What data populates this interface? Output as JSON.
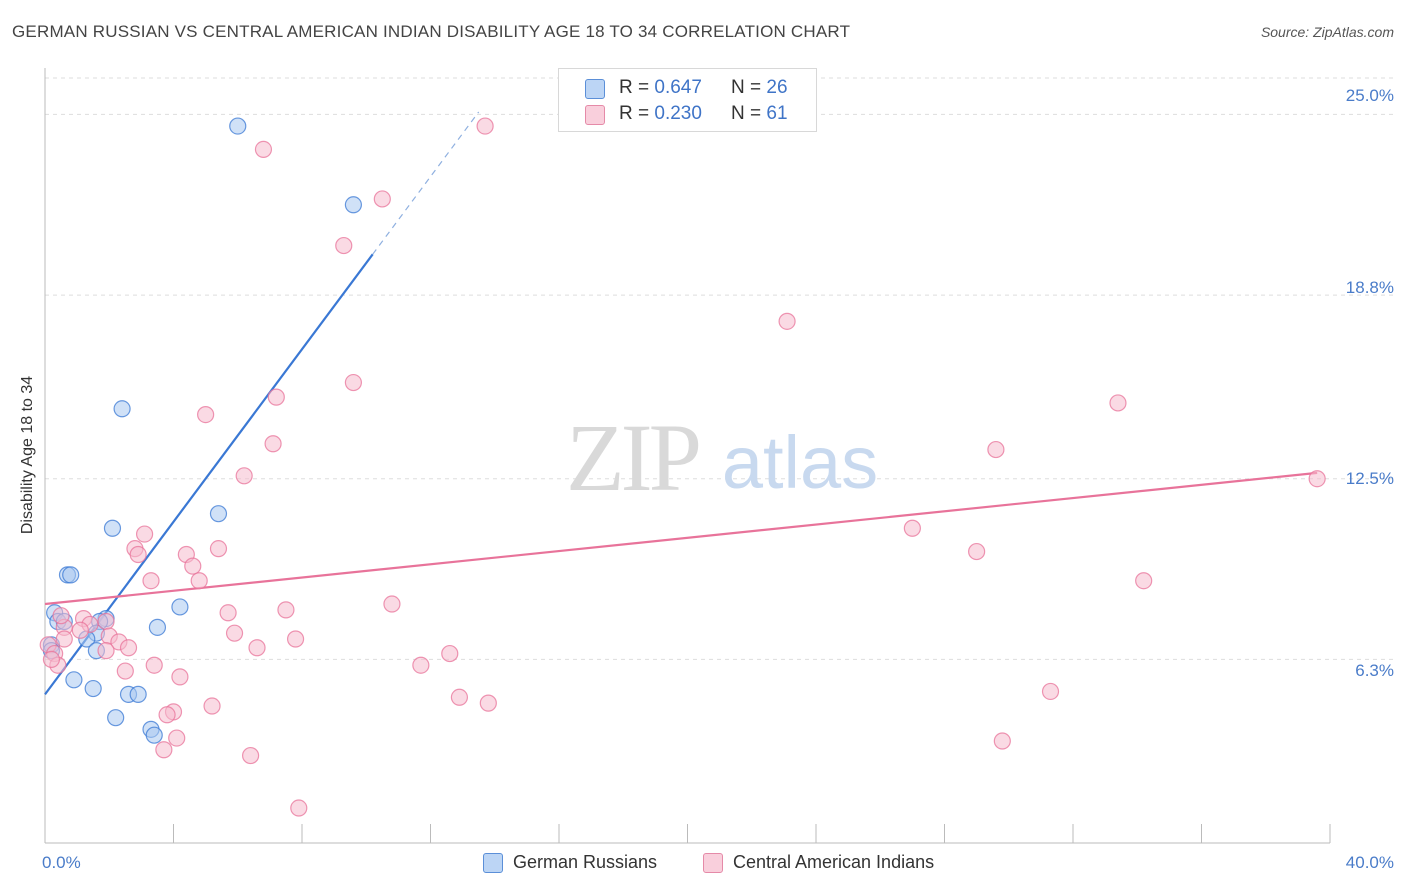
{
  "title": "GERMAN RUSSIAN VS CENTRAL AMERICAN INDIAN DISABILITY AGE 18 TO 34 CORRELATION CHART",
  "source": "Source: ZipAtlas.com",
  "watermark": {
    "zip": "ZIP",
    "atlas": "atlas"
  },
  "colors": {
    "blue": "#3a78d4",
    "blue_fill": "#a9c8f0",
    "pink": "#e8739a",
    "pink_fill": "#f6bccd",
    "tick_text": "#4a7cc9",
    "grid": "#dddddd"
  },
  "legend_top": {
    "rows": [
      {
        "r_label": "R =",
        "r_value": "0.647",
        "n_label": "N =",
        "n_value": "26",
        "color": "blue"
      },
      {
        "r_label": "R =",
        "r_value": "0.230",
        "n_label": "N =",
        "n_value": "61",
        "color": "pink"
      }
    ]
  },
  "legend_bottom": [
    {
      "label": "German Russians",
      "color": "blue"
    },
    {
      "label": "Central American Indians",
      "color": "pink"
    }
  ],
  "chart_data": {
    "type": "scatter",
    "title": "GERMAN RUSSIAN VS CENTRAL AMERICAN INDIAN DISABILITY AGE 18 TO 34 CORRELATION CHART",
    "xlabel": "",
    "ylabel": "Disability Age 18 to 34",
    "xlim": [
      0,
      40
    ],
    "ylim": [
      0,
      26.25
    ],
    "x_tick_labels": [
      {
        "value": 0,
        "label": "0.0%"
      },
      {
        "value": 40,
        "label": "40.0%"
      }
    ],
    "y_tick_labels": [
      {
        "value": 6.3,
        "label": "6.3%"
      },
      {
        "value": 12.5,
        "label": "12.5%"
      },
      {
        "value": 18.8,
        "label": "18.8%"
      },
      {
        "value": 25.0,
        "label": "25.0%"
      }
    ],
    "x_minor_ticks": [
      0,
      4,
      8,
      12,
      16,
      20,
      24,
      28,
      32,
      36,
      40
    ],
    "grid": true,
    "legend_position": "top-center",
    "series": [
      {
        "name": "German Russians",
        "color": "blue",
        "r": 0.647,
        "n": 26,
        "trend": {
          "x0": 0,
          "y0": 5.1,
          "x1": 10.2,
          "y1": 20.2,
          "dash_to_x": 13.5
        },
        "points": [
          [
            6.0,
            24.6
          ],
          [
            9.6,
            21.9
          ],
          [
            2.4,
            14.9
          ],
          [
            5.4,
            11.3
          ],
          [
            2.1,
            10.8
          ],
          [
            0.7,
            9.2
          ],
          [
            0.8,
            9.2
          ],
          [
            4.2,
            8.1
          ],
          [
            0.3,
            7.9
          ],
          [
            0.4,
            7.6
          ],
          [
            0.6,
            7.6
          ],
          [
            1.9,
            7.7
          ],
          [
            1.7,
            7.6
          ],
          [
            3.5,
            7.4
          ],
          [
            1.6,
            7.2
          ],
          [
            1.3,
            7.0
          ],
          [
            0.2,
            6.8
          ],
          [
            0.2,
            6.6
          ],
          [
            1.6,
            6.6
          ],
          [
            0.9,
            5.6
          ],
          [
            1.5,
            5.3
          ],
          [
            2.6,
            5.1
          ],
          [
            2.9,
            5.1
          ],
          [
            2.2,
            4.3
          ],
          [
            3.3,
            3.9
          ],
          [
            3.4,
            3.7
          ]
        ]
      },
      {
        "name": "Central American Indians",
        "color": "pink",
        "r": 0.23,
        "n": 61,
        "trend": {
          "x0": 0,
          "y0": 8.2,
          "x1": 39.6,
          "y1": 12.7
        },
        "points": [
          [
            13.7,
            24.6
          ],
          [
            6.8,
            23.8
          ],
          [
            10.5,
            22.1
          ],
          [
            9.3,
            20.5
          ],
          [
            23.1,
            17.9
          ],
          [
            9.6,
            15.8
          ],
          [
            7.2,
            15.3
          ],
          [
            33.4,
            15.1
          ],
          [
            5.0,
            14.7
          ],
          [
            7.1,
            13.7
          ],
          [
            29.6,
            13.5
          ],
          [
            6.2,
            12.6
          ],
          [
            39.6,
            12.5
          ],
          [
            27.0,
            10.8
          ],
          [
            3.1,
            10.6
          ],
          [
            2.8,
            10.1
          ],
          [
            5.4,
            10.1
          ],
          [
            2.9,
            9.9
          ],
          [
            4.4,
            9.9
          ],
          [
            29.0,
            10.0
          ],
          [
            4.6,
            9.5
          ],
          [
            3.3,
            9.0
          ],
          [
            4.8,
            9.0
          ],
          [
            34.2,
            9.0
          ],
          [
            10.8,
            8.2
          ],
          [
            7.5,
            8.0
          ],
          [
            5.7,
            7.9
          ],
          [
            1.2,
            7.7
          ],
          [
            1.9,
            7.6
          ],
          [
            1.4,
            7.5
          ],
          [
            0.6,
            7.4
          ],
          [
            1.1,
            7.3
          ],
          [
            5.9,
            7.2
          ],
          [
            2.0,
            7.1
          ],
          [
            7.8,
            7.0
          ],
          [
            0.6,
            7.0
          ],
          [
            2.3,
            6.9
          ],
          [
            0.1,
            6.8
          ],
          [
            2.6,
            6.7
          ],
          [
            6.6,
            6.7
          ],
          [
            1.9,
            6.6
          ],
          [
            0.3,
            6.5
          ],
          [
            12.6,
            6.5
          ],
          [
            0.4,
            6.1
          ],
          [
            3.4,
            6.1
          ],
          [
            11.7,
            6.1
          ],
          [
            2.5,
            5.9
          ],
          [
            4.2,
            5.7
          ],
          [
            31.3,
            5.2
          ],
          [
            12.9,
            5.0
          ],
          [
            13.8,
            4.8
          ],
          [
            5.2,
            4.7
          ],
          [
            4.0,
            4.5
          ],
          [
            3.8,
            4.4
          ],
          [
            4.1,
            3.6
          ],
          [
            29.8,
            3.5
          ],
          [
            3.7,
            3.2
          ],
          [
            6.4,
            3.0
          ],
          [
            7.9,
            1.2
          ],
          [
            0.2,
            6.3
          ],
          [
            0.5,
            7.8
          ]
        ]
      }
    ]
  }
}
